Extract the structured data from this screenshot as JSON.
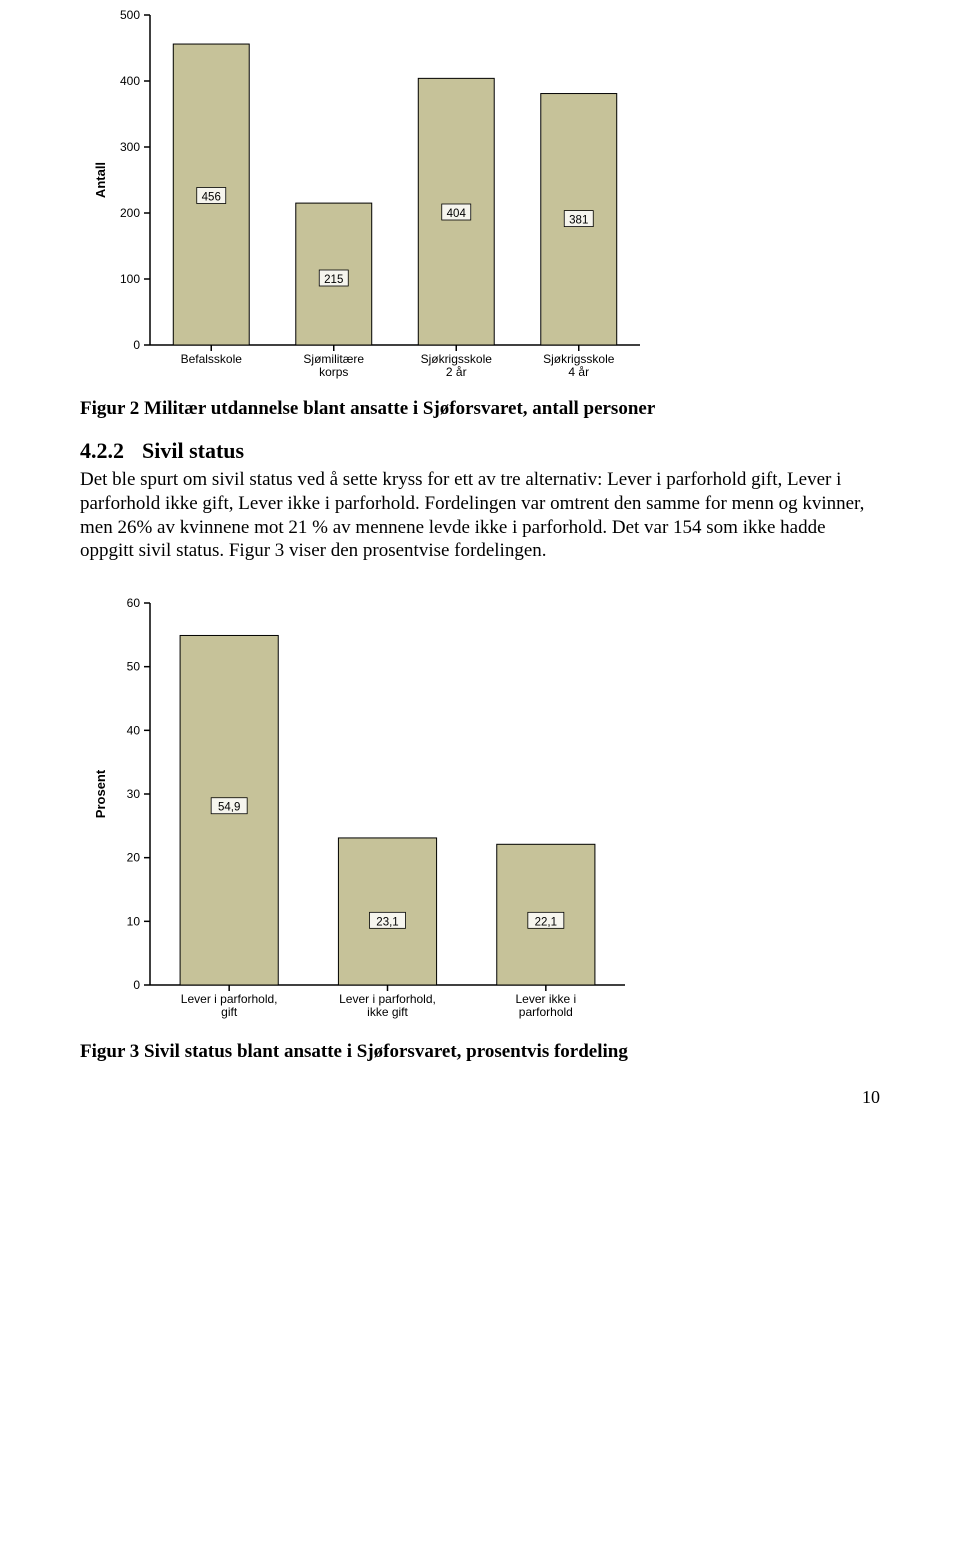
{
  "chart1": {
    "type": "bar",
    "ylabel": "Antall",
    "ylim": [
      0,
      500
    ],
    "yticks": [
      0,
      100,
      200,
      300,
      400,
      500
    ],
    "categories": [
      "Befalsskole",
      "Sjømilitære\nkorps",
      "Sjøkrigsskole\n2 år",
      "Sjøkrigsskole\n4 år"
    ],
    "values": [
      456,
      215,
      404,
      381
    ],
    "value_labels": [
      "456",
      "215",
      "404",
      "381"
    ],
    "label_y_values": [
      225,
      100,
      200,
      190
    ],
    "bar_color": "#c6c299",
    "bar_border": "#000000",
    "label_box_fill": "#f6f5ee",
    "background_color": "#ffffff",
    "axis_color": "#000000",
    "tick_fontsize": 12,
    "ylabel_fontsize": 13
  },
  "caption1": "Figur 2 Militær utdannelse blant ansatte i Sjøforsvaret, antall personer",
  "section": {
    "number": "4.2.2",
    "title": "Sivil status"
  },
  "paragraph": "Det ble spurt om sivil status ved å sette kryss for ett av tre alternativ: Lever i parforhold gift, Lever i parforhold ikke gift, Lever ikke i parforhold. Fordelingen var omtrent den samme for menn og kvinner, men 26% av kvinnene mot 21 % av mennene levde ikke i parforhold. Det var 154 som ikke hadde oppgitt sivil status. Figur 3 viser den prosentvise fordelingen.",
  "chart2": {
    "type": "bar",
    "ylabel": "Prosent",
    "ylim": [
      0,
      60
    ],
    "yticks": [
      0,
      10,
      20,
      30,
      40,
      50,
      60
    ],
    "categories": [
      "Lever i parforhold, gift",
      "Lever i parforhold, ikke gift",
      "Lever ikke i parforhold"
    ],
    "values": [
      54.9,
      23.1,
      22.1
    ],
    "value_labels": [
      "54,9",
      "23,1",
      "22,1"
    ],
    "label_y_values": [
      28,
      10,
      10
    ],
    "bar_color": "#c6c299",
    "bar_border": "#000000",
    "label_box_fill": "#f6f5ee",
    "background_color": "#ffffff",
    "axis_color": "#000000",
    "tick_fontsize": 12,
    "ylabel_fontsize": 13
  },
  "caption2": "Figur 3 Sivil status blant ansatte i Sjøforsvaret, prosentvis fordeling",
  "page_number": "10"
}
